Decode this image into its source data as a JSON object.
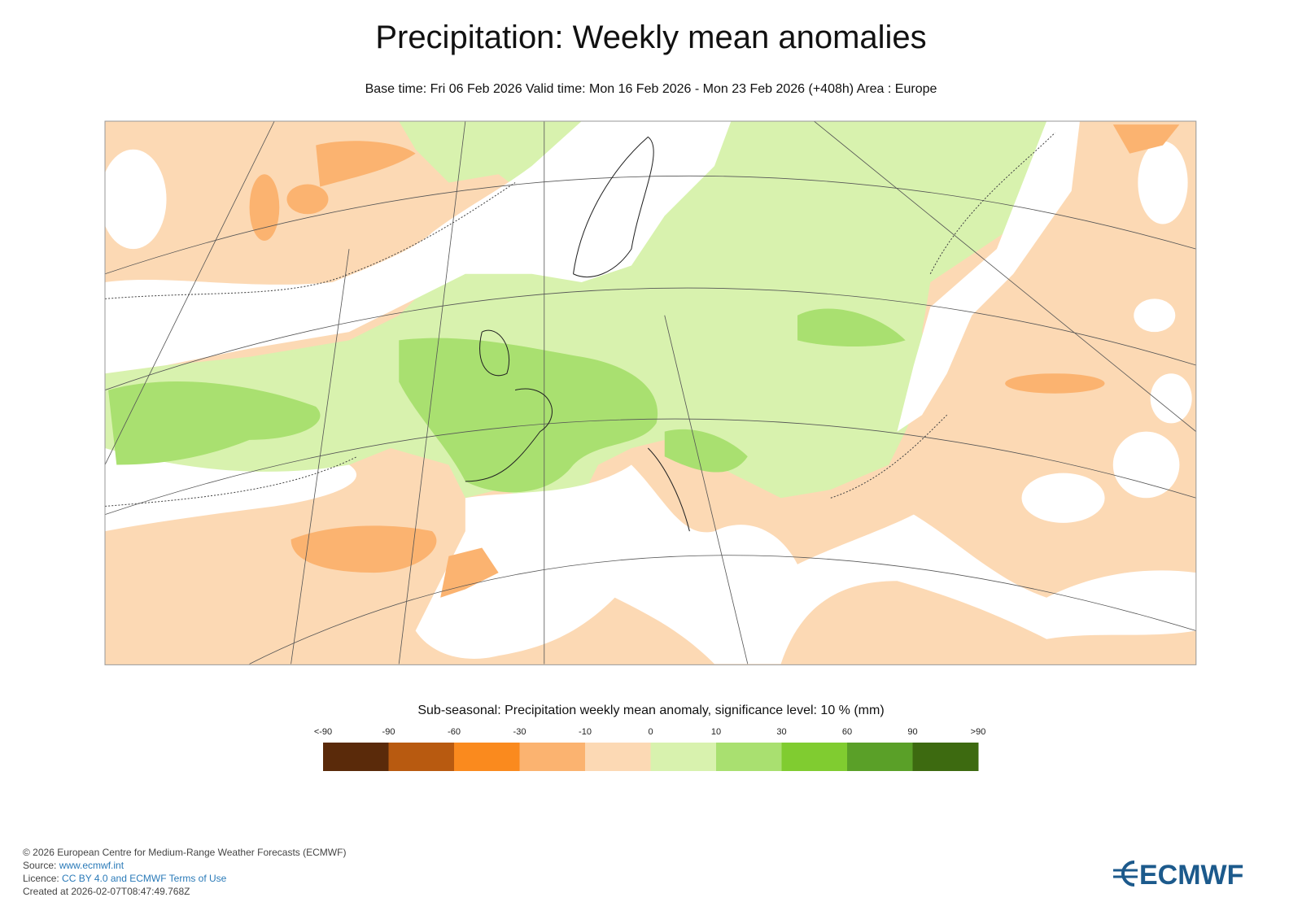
{
  "header": {
    "title": "Precipitation: Weekly mean anomalies",
    "subtitle": "Base time: Fri 06 Feb 2026 Valid time: Mon 16 Feb 2026 - Mon 23 Feb 2026 (+408h) Area : Europe"
  },
  "legend": {
    "title": "Sub-seasonal: Precipitation weekly mean anomaly, significance level: 10 % (mm)",
    "labels": [
      "<-90",
      "-90",
      "-60",
      "-30",
      "-10",
      "0",
      "10",
      "30",
      "60",
      "90",
      ">90"
    ],
    "colors": [
      "#5a2a0a",
      "#b85a10",
      "#fa8a1e",
      "#fbb370",
      "#fcd9b4",
      "#d8f2ae",
      "#a9e070",
      "#80cc30",
      "#5aa028",
      "#3d6a10"
    ]
  },
  "footer": {
    "copyright": "© 2026 European Centre for Medium-Range Weather Forecasts (ECMWF)",
    "source_label": "Source:",
    "source_link": "www.ecmwf.int",
    "licence_label": "Licence:",
    "licence_link": "CC BY 4.0 and ECMWF Terms of Use",
    "created": "Created at 2026-02-07T08:47:49.768Z"
  },
  "logo": "ECMWF"
}
